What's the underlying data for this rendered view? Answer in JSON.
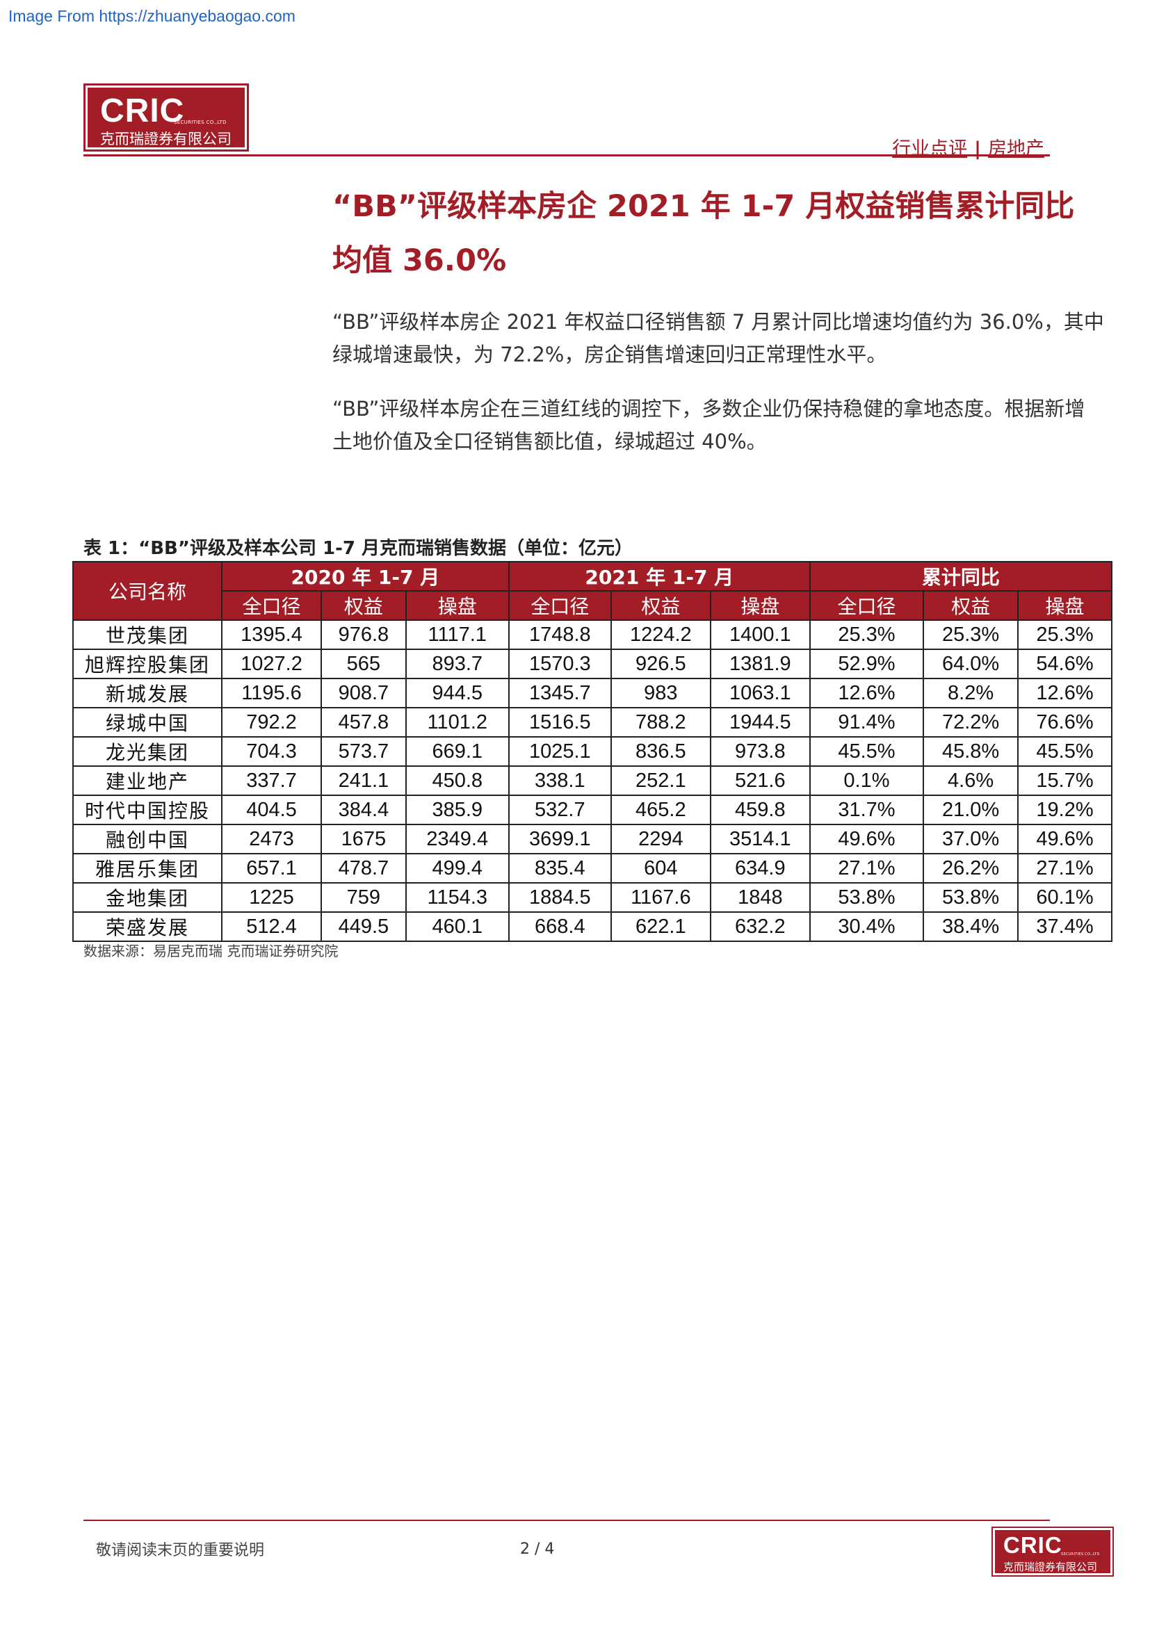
{
  "source_note": "Image From https://zhuanyebaogao.com",
  "logo": {
    "main": "CRIC",
    "sub": "SECURITIES CO.,LTD",
    "cn": "克而瑞證券有限公司"
  },
  "header": {
    "category": "行业点评",
    "separator": "|",
    "sector": "房地产"
  },
  "title": "“BB”评级样本房企 2021 年 1-7 月权益销售累计同比均值 36.0%",
  "paragraphs": [
    "“BB”评级样本房企 2021 年权益口径销售额 7 月累计同比增速均值约为 36.0%，其中绿城增速最快，为 72.2%，房企销售增速回归正常理性水平。",
    "“BB”评级样本房企在三道红线的调控下，多数企业仍保持稳健的拿地态度。根据新增土地价值及全口径销售额比值，绿城超过 40%。"
  ],
  "table": {
    "caption": "表 1：“BB”评级及样本公司 1-7 月克而瑞销售数据（单位：亿元）",
    "name_header": "公司名称",
    "groups": [
      "2020 年 1-7 月",
      "2021 年 1-7 月",
      "累计同比"
    ],
    "subheaders": [
      "全口径",
      "权益",
      "操盘",
      "全口径",
      "权益",
      "操盘",
      "全口径",
      "权益",
      "操盘"
    ],
    "rows": [
      [
        "世茂集团",
        "1395.4",
        "976.8",
        "1117.1",
        "1748.8",
        "1224.2",
        "1400.1",
        "25.3%",
        "25.3%",
        "25.3%"
      ],
      [
        "旭辉控股集团",
        "1027.2",
        "565",
        "893.7",
        "1570.3",
        "926.5",
        "1381.9",
        "52.9%",
        "64.0%",
        "54.6%"
      ],
      [
        "新城发展",
        "1195.6",
        "908.7",
        "944.5",
        "1345.7",
        "983",
        "1063.1",
        "12.6%",
        "8.2%",
        "12.6%"
      ],
      [
        "绿城中国",
        "792.2",
        "457.8",
        "1101.2",
        "1516.5",
        "788.2",
        "1944.5",
        "91.4%",
        "72.2%",
        "76.6%"
      ],
      [
        "龙光集团",
        "704.3",
        "573.7",
        "669.1",
        "1025.1",
        "836.5",
        "973.8",
        "45.5%",
        "45.8%",
        "45.5%"
      ],
      [
        "建业地产",
        "337.7",
        "241.1",
        "450.8",
        "338.1",
        "252.1",
        "521.6",
        "0.1%",
        "4.6%",
        "15.7%"
      ],
      [
        "时代中国控股",
        "404.5",
        "384.4",
        "385.9",
        "532.7",
        "465.2",
        "459.8",
        "31.7%",
        "21.0%",
        "19.2%"
      ],
      [
        "融创中国",
        "2473",
        "1675",
        "2349.4",
        "3699.1",
        "2294",
        "3514.1",
        "49.6%",
        "37.0%",
        "49.6%"
      ],
      [
        "雅居乐集团",
        "657.1",
        "478.7",
        "499.4",
        "835.4",
        "604",
        "634.9",
        "27.1%",
        "26.2%",
        "27.1%"
      ],
      [
        "金地集团",
        "1225",
        "759",
        "1154.3",
        "1884.5",
        "1167.6",
        "1848",
        "53.8%",
        "53.8%",
        "60.1%"
      ],
      [
        "荣盛发展",
        "512.4",
        "449.5",
        "460.1",
        "668.4",
        "622.1",
        "632.2",
        "30.4%",
        "38.4%",
        "37.4%"
      ]
    ],
    "source": "数据来源：易居克而瑞 克而瑞证券研究院"
  },
  "footer": {
    "note": "敬请阅读末页的重要说明",
    "page": "2 / 4"
  },
  "colors": {
    "brand_red": "#a21d26",
    "link_blue": "#1f64c4"
  }
}
